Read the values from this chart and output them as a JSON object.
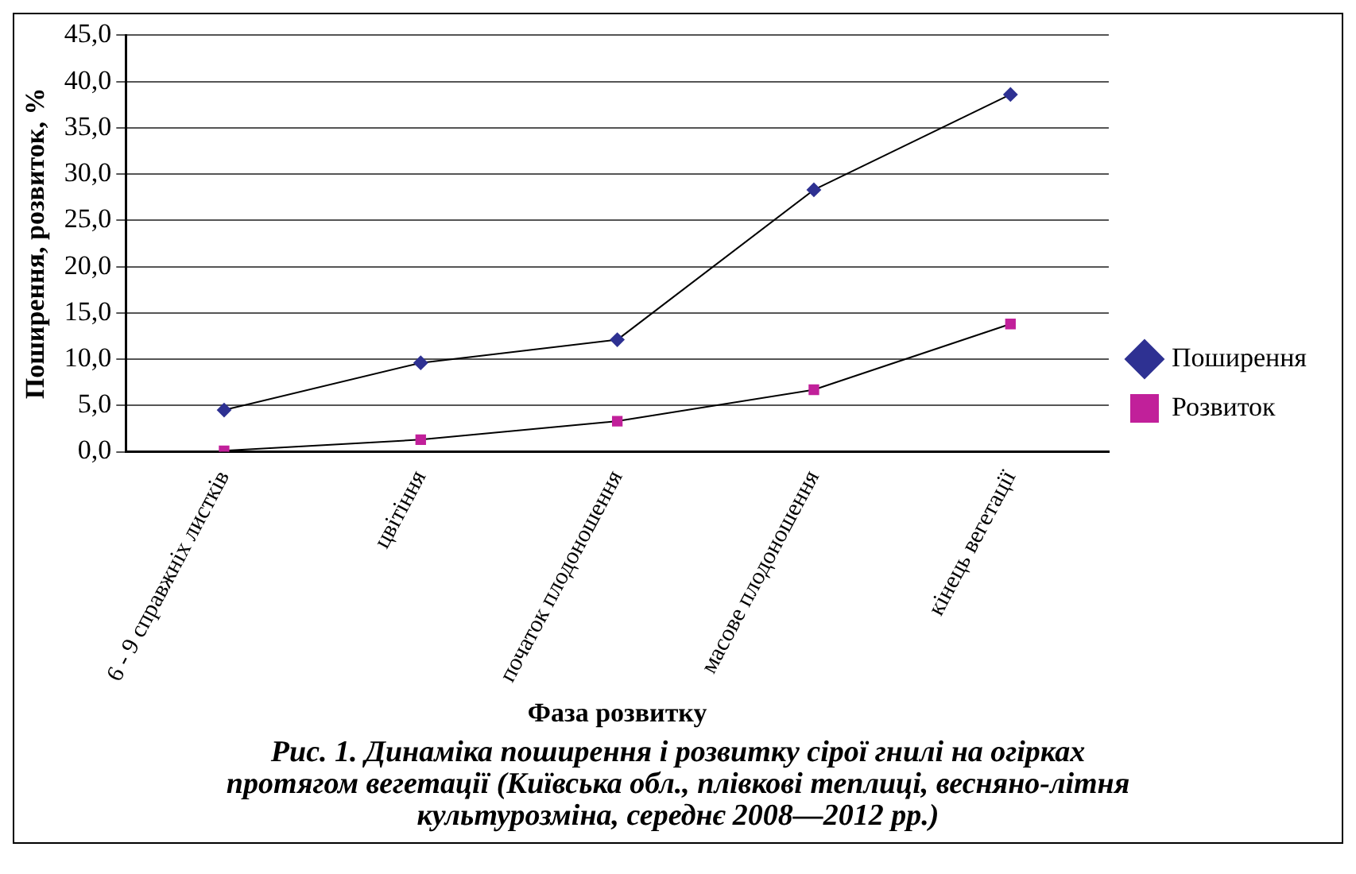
{
  "chart_data": {
    "type": "line",
    "title": "Рис. 1. Динаміка поширення і розвитку сірої гнилі на огірках протягом вегетації (Київська обл., плівкові теплиці, весняно-літня культурозміна, середнє 2008—2012 рр.)",
    "xlabel": "Фаза розвитку",
    "ylabel": "Поширення, розвиток, %",
    "categories": [
      "6 - 9 справжніх листків",
      "цвітіння",
      "початок плодоношення",
      "масове плодоношення",
      "кінець вегетації"
    ],
    "series": [
      {
        "name": "Поширення",
        "color": "#2e3192",
        "marker": "diamond",
        "values": [
          4.5,
          9.6,
          12.1,
          28.3,
          38.6
        ]
      },
      {
        "name": "Розвиток",
        "color": "#c1209a",
        "marker": "square",
        "values": [
          0.1,
          1.3,
          3.3,
          6.7,
          13.8
        ]
      }
    ],
    "ylim": [
      0,
      45
    ],
    "yticks": [
      {
        "value": 0,
        "label": "0,0"
      },
      {
        "value": 5,
        "label": "5,0"
      },
      {
        "value": 10,
        "label": "10,0"
      },
      {
        "value": 15,
        "label": "15,0"
      },
      {
        "value": 20,
        "label": "20,0"
      },
      {
        "value": 25,
        "label": "25,0"
      },
      {
        "value": 30,
        "label": "30,0"
      },
      {
        "value": 35,
        "label": "35,0"
      },
      {
        "value": 40,
        "label": "40,0"
      },
      {
        "value": 45,
        "label": "45,0"
      }
    ],
    "grid": "y",
    "legend": "right",
    "line_style": "solid"
  }
}
